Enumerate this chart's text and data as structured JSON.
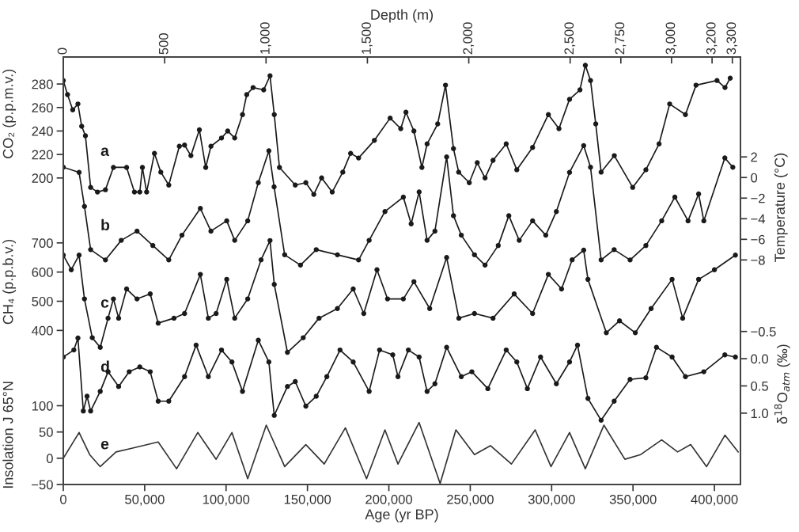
{
  "chart_data": [
    {
      "type": "line",
      "tick_labels": "y",
      "xlim": [
        0,
        416000
      ],
      "ylabel": "CO₂ (p.p.m.v.)",
      "y2label": "Temperature (°C)",
      "ylim": [
        -61,
        303
      ],
      "yticks": [
        200,
        220,
        240,
        260,
        280
      ],
      "y2lim": [
        -29.8,
        11.7
      ],
      "y2ticks": [
        2,
        0,
        {
          "value": -2,
          "label": "−2"
        },
        {
          "value": -4,
          "label": "−4"
        },
        {
          "value": -6,
          "label": "−6"
        },
        {
          "value": -8,
          "label": "−8"
        }
      ],
      "grid": false,
      "line_style": "solid",
      "series": [
        {
          "name": "a",
          "color": "#1a1a1a",
          "marker": "circle",
          "x": [
            0,
            2600,
            5800,
            9000,
            11300,
            13600,
            16800,
            21000,
            25900,
            30800,
            38900,
            43700,
            47000,
            48600,
            51200,
            56000,
            59900,
            64800,
            71300,
            74500,
            78400,
            83600,
            87500,
            90700,
            97200,
            101000,
            105300,
            110100,
            112700,
            116600,
            123100,
            127000,
            129600,
            132800,
            142500,
            149000,
            153900,
            158700,
            165200,
            171700,
            176500,
            181400,
            191100,
            200800,
            207300,
            210500,
            215400,
            220300,
            223500,
            230000,
            234800,
            239700,
            242900,
            249400,
            254300,
            259100,
            264000,
            272100,
            278600,
            288300,
            298000,
            304500,
            311000,
            317400,
            320700,
            323900,
            327100,
            330400,
            338500,
            349800,
            357900,
            366000,
            372500,
            382200,
            388700,
            401600,
            406500,
            409700
          ],
          "values": [
            283,
            271,
            258,
            263,
            244,
            236,
            192,
            188,
            190,
            209,
            209,
            188,
            188,
            209,
            188,
            221,
            205,
            194,
            227,
            228,
            219,
            241,
            209,
            227,
            234,
            240,
            234,
            254,
            271,
            277,
            275,
            287,
            254,
            209,
            194,
            196,
            186,
            200,
            188,
            205,
            221,
            217,
            232,
            251,
            242,
            256,
            240,
            209,
            229,
            246,
            279,
            225,
            205,
            196,
            213,
            200,
            215,
            229,
            207,
            226,
            254,
            242,
            267,
            275,
            296,
            283,
            246,
            205,
            219,
            192,
            207,
            229,
            263,
            254,
            279,
            283,
            277,
            285
          ]
        },
        {
          "name": "b",
          "axis": "y2",
          "color": "#1a1a1a",
          "marker": "circle",
          "x": [
            0,
            9700,
            13000,
            16800,
            25900,
            35600,
            45300,
            55000,
            64800,
            72900,
            84200,
            90700,
            100400,
            105300,
            113300,
            119800,
            126300,
            129500,
            136000,
            145700,
            155400,
            168400,
            181400,
            187900,
            197600,
            208900,
            213700,
            218600,
            223500,
            228300,
            235500,
            239700,
            244500,
            252600,
            259100,
            267200,
            273700,
            280100,
            288300,
            296400,
            302900,
            311000,
            319700,
            323900,
            330400,
            338400,
            348200,
            357900,
            367600,
            375700,
            383800,
            390300,
            393500,
            406400,
            411300
          ],
          "values": [
            1.0,
            0.5,
            -2.8,
            -7.0,
            -8.0,
            -6.1,
            -5.2,
            -6.6,
            -8.0,
            -5.6,
            -3.0,
            -5.2,
            -4.2,
            -6.1,
            -4.2,
            -0.5,
            2.6,
            -0.9,
            -7.5,
            -8.5,
            -7.0,
            -7.5,
            -8.0,
            -6.1,
            -3.3,
            -1.9,
            -4.5,
            -1.4,
            -6.1,
            -5.2,
            2.0,
            -3.7,
            -5.6,
            -7.5,
            -8.5,
            -6.6,
            -3.7,
            -6.1,
            -4.2,
            -5.6,
            -3.3,
            0.5,
            3.1,
            1.0,
            -8.0,
            -7.0,
            -8.0,
            -6.6,
            -4.2,
            -1.9,
            -4.2,
            -1.6,
            -4.2,
            1.9,
            1.0
          ]
        }
      ]
    },
    {
      "type": "line",
      "tick_labels": "y",
      "xlim": [
        0,
        416000
      ],
      "ylabel": "CH₄ (p.p.b.v.)",
      "y2label": "δ$^{18}$O$_{atm}$ (‰)",
      "ylim": [
        -128,
        1337
      ],
      "yticks": [
        400,
        500,
        600,
        700
      ],
      "y2lim": [
        2.31,
        -5.54
      ],
      "y2ticks": [
        {
          "value": -0.5,
          "label": "−0.5"
        },
        {
          "value": 0,
          "label": "0.0"
        },
        0.5,
        {
          "value": 1,
          "label": "1.0"
        }
      ],
      "grid": false,
      "line_style": "solid",
      "series": [
        {
          "name": "c",
          "color": "#1a1a1a",
          "marker": "circle",
          "x": [
            0,
            4900,
            9700,
            13000,
            17800,
            22700,
            27500,
            30800,
            34000,
            38900,
            45300,
            53400,
            58300,
            68000,
            74500,
            84200,
            89100,
            93900,
            100400,
            105300,
            113300,
            121500,
            127000,
            129600,
            137700,
            147400,
            157100,
            168400,
            178100,
            184600,
            192700,
            199200,
            208900,
            215400,
            225100,
            235500,
            243000,
            252600,
            264000,
            277000,
            288300,
            298000,
            306100,
            312600,
            319700,
            322300,
            333600,
            341700,
            351400,
            361100,
            374000,
            380500,
            390300,
            400000,
            412900
          ],
          "values": [
            658,
            608,
            658,
            508,
            375,
            342,
            442,
            508,
            442,
            542,
            508,
            525,
            425,
            442,
            458,
            592,
            442,
            458,
            575,
            442,
            508,
            642,
            708,
            558,
            325,
            375,
            442,
            475,
            542,
            458,
            608,
            508,
            508,
            567,
            475,
            650,
            442,
            458,
            442,
            525,
            458,
            592,
            542,
            642,
            675,
            575,
            392,
            433,
            392,
            475,
            575,
            442,
            575,
            608,
            658
          ]
        },
        {
          "name": "d",
          "axis": "y2",
          "color": "#1a1a1a",
          "marker": "circle",
          "x": [
            0,
            6500,
            9000,
            12300,
            14600,
            16800,
            22700,
            27500,
            34000,
            40500,
            47000,
            53400,
            58300,
            64800,
            74500,
            81600,
            89100,
            97200,
            103600,
            110100,
            119800,
            126300,
            129600,
            137700,
            142500,
            149000,
            155400,
            161900,
            170000,
            178100,
            187900,
            194300,
            202400,
            205600,
            212000,
            218600,
            223500,
            228300,
            235500,
            244500,
            251000,
            260800,
            272100,
            278600,
            285100,
            293200,
            302900,
            311000,
            315900,
            322300,
            330400,
            338400,
            348200,
            357900,
            364400,
            374000,
            382200,
            393500,
            406400,
            412900
          ],
          "values": [
            -0.03,
            -0.16,
            -0.38,
            0.96,
            0.69,
            0.96,
            0.6,
            0.24,
            0.51,
            0.24,
            0.15,
            0.24,
            0.78,
            0.78,
            0.33,
            -0.25,
            0.33,
            -0.16,
            0.06,
            0.6,
            -0.34,
            0.06,
            1.04,
            0.51,
            0.42,
            0.87,
            0.69,
            0.33,
            -0.16,
            0.06,
            0.6,
            -0.16,
            -0.07,
            0.33,
            -0.16,
            -0.03,
            0.6,
            0.46,
            -0.21,
            0.33,
            0.24,
            0.55,
            -0.16,
            0.06,
            0.55,
            -0.03,
            0.46,
            0.06,
            -0.25,
            0.73,
            1.13,
            0.78,
            0.38,
            0.35,
            -0.21,
            -0.03,
            0.33,
            0.24,
            -0.07,
            -0.03
          ]
        }
      ]
    },
    {
      "type": "line",
      "xlabel": "Age (yr BP)",
      "x2label": "Depth (m)",
      "ylabel": "Insolation J 65°N",
      "xlim": [
        0,
        416000
      ],
      "xticks": [
        0,
        {
          "value": 50000,
          "label": "50,000"
        },
        {
          "value": 100000,
          "label": "100,000"
        },
        {
          "value": 150000,
          "label": "150,000"
        },
        {
          "value": 200000,
          "label": "200,000"
        },
        {
          "value": 250000,
          "label": "250,000"
        },
        {
          "value": 300000,
          "label": "300,000"
        },
        {
          "value": 350000,
          "label": "350,000"
        },
        {
          "value": 400000,
          "label": "400,000"
        }
      ],
      "x2lim": [
        0,
        3340
      ],
      "x2ticks": [
        0,
        {
          "value": 500,
          "label": "500"
        },
        {
          "value": 1000,
          "label": "1,000"
        },
        {
          "value": 1500,
          "label": "1,500"
        },
        {
          "value": 2000,
          "label": "2,000"
        },
        {
          "value": 2500,
          "label": "2,500"
        },
        {
          "value": 2750,
          "label": "2,750"
        },
        {
          "value": 3000,
          "label": "3,000"
        },
        {
          "value": 3200,
          "label": "3,200"
        },
        {
          "value": 3300,
          "label": "3,300"
        }
      ],
      "ylim": [
        -50,
        764
      ],
      "yticks": [
        {
          "value": -50,
          "label": "−50"
        },
        0,
        50,
        100
      ],
      "grid": false,
      "line_style": "solid",
      "series": [
        {
          "name": "e",
          "color": "#333333",
          "marker": "none",
          "x": [
            0,
            9700,
            16200,
            22700,
            32400,
            42100,
            58300,
            69600,
            82600,
            93900,
            103600,
            113300,
            124700,
            136000,
            149000,
            160300,
            173300,
            186300,
            197600,
            205600,
            218600,
            231500,
            241200,
            252600,
            262400,
            275300,
            289900,
            299600,
            311000,
            320700,
            332100,
            345000,
            354700,
            367600,
            377400,
            385400,
            395200,
            406500,
            414600
          ],
          "values": [
            0,
            49,
            7,
            -16,
            12,
            19,
            31,
            -20,
            49,
            -2,
            49,
            -39,
            63,
            -16,
            26,
            -11,
            58,
            -39,
            54,
            -11,
            68,
            -48,
            54,
            7,
            24,
            -11,
            54,
            -16,
            49,
            -20,
            63,
            -2,
            7,
            35,
            12,
            26,
            -16,
            44,
            12
          ]
        }
      ]
    }
  ]
}
